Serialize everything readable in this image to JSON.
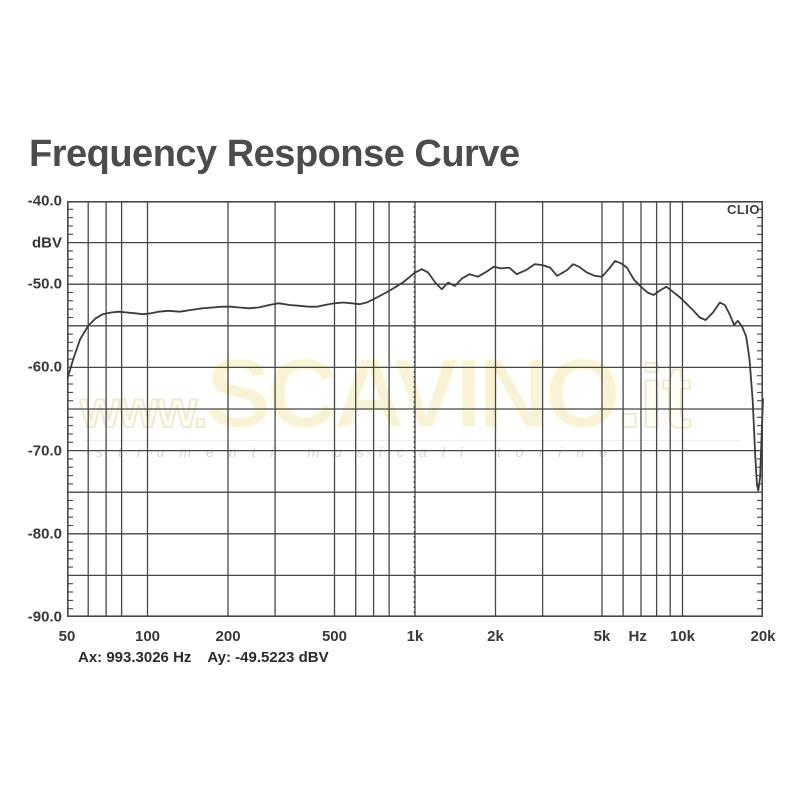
{
  "title": "Frequency Response Curve",
  "clio_label": "CLIO",
  "cursor": {
    "ax": "Ax: 993.3026 Hz",
    "ay": "Ay: -49.5223 dBV"
  },
  "watermark": {
    "prefix": "www.",
    "main": "SCAVINO",
    "suffix": ".it",
    "subtext": "strumenti musicali torino"
  },
  "axes": {
    "y_unit": "dBV",
    "y_ticks": [
      {
        "label": "-40.0",
        "value": -40
      },
      {
        "label": "dBV",
        "value": -45
      },
      {
        "label": "-50.0",
        "value": -50
      },
      {
        "label": "-60.0",
        "value": -60
      },
      {
        "label": "-70.0",
        "value": -70
      },
      {
        "label": "-80.0",
        "value": -80
      },
      {
        "label": "-90.0",
        "value": -90
      }
    ],
    "x_ticks": [
      {
        "label": "50",
        "hz": 50
      },
      {
        "label": "100",
        "hz": 100
      },
      {
        "label": "200",
        "hz": 200
      },
      {
        "label": "500",
        "hz": 500
      },
      {
        "label": "1k",
        "hz": 1000
      },
      {
        "label": "2k",
        "hz": 2000
      },
      {
        "label": "5k",
        "hz": 5000
      },
      {
        "label": "Hz",
        "hz": 6800
      },
      {
        "label": "10k",
        "hz": 10000
      },
      {
        "label": "20k",
        "hz": 20000
      }
    ]
  },
  "colors": {
    "grid": "#474747",
    "curve": "#3c3c3c",
    "title_text": "#4c4c4c",
    "watermark_fill": "#f8f3d6"
  },
  "chart_data": {
    "type": "line",
    "title": "Frequency Response Curve",
    "xlabel": "Hz",
    "ylabel": "dBV",
    "xscale": "log",
    "xlim": [
      50,
      20000
    ],
    "ylim": [
      -90,
      -40
    ],
    "grid": true,
    "y_grid_step_db": 5,
    "y_minor_tick_step_db": 1,
    "x_gridlines_hz": [
      60,
      70,
      80,
      100,
      200,
      300,
      500,
      600,
      700,
      800,
      1000,
      2000,
      3000,
      5000,
      6000,
      7000,
      8000,
      9000,
      10000
    ],
    "cursor_marker": {
      "x_hz": 993.3026,
      "y_dbv": -49.5223,
      "style": "dotted-vertical-line"
    },
    "series": [
      {
        "name": "frequency-response",
        "points": [
          [
            50,
            -61.5
          ],
          [
            53,
            -58.8
          ],
          [
            56,
            -56.6
          ],
          [
            60,
            -55.0
          ],
          [
            64,
            -54.1
          ],
          [
            68,
            -53.6
          ],
          [
            73,
            -53.4
          ],
          [
            78,
            -53.3
          ],
          [
            84,
            -53.4
          ],
          [
            90,
            -53.5
          ],
          [
            96,
            -53.6
          ],
          [
            103,
            -53.5
          ],
          [
            110,
            -53.3
          ],
          [
            120,
            -53.2
          ],
          [
            132,
            -53.3
          ],
          [
            145,
            -53.1
          ],
          [
            160,
            -52.9
          ],
          [
            175,
            -52.8
          ],
          [
            190,
            -52.7
          ],
          [
            205,
            -52.7
          ],
          [
            220,
            -52.8
          ],
          [
            240,
            -52.9
          ],
          [
            260,
            -52.8
          ],
          [
            285,
            -52.5
          ],
          [
            310,
            -52.3
          ],
          [
            340,
            -52.5
          ],
          [
            370,
            -52.6
          ],
          [
            400,
            -52.7
          ],
          [
            430,
            -52.7
          ],
          [
            460,
            -52.5
          ],
          [
            500,
            -52.3
          ],
          [
            540,
            -52.2
          ],
          [
            580,
            -52.3
          ],
          [
            620,
            -52.4
          ],
          [
            660,
            -52.2
          ],
          [
            700,
            -51.8
          ],
          [
            750,
            -51.3
          ],
          [
            800,
            -50.8
          ],
          [
            850,
            -50.3
          ],
          [
            900,
            -49.8
          ],
          [
            950,
            -49.2
          ],
          [
            1000,
            -48.6
          ],
          [
            1060,
            -48.2
          ],
          [
            1120,
            -48.6
          ],
          [
            1190,
            -49.8
          ],
          [
            1260,
            -50.6
          ],
          [
            1330,
            -49.8
          ],
          [
            1410,
            -50.2
          ],
          [
            1500,
            -49.3
          ],
          [
            1600,
            -48.8
          ],
          [
            1720,
            -49.1
          ],
          [
            1850,
            -48.5
          ],
          [
            1970,
            -47.9
          ],
          [
            2100,
            -48.1
          ],
          [
            2250,
            -48.0
          ],
          [
            2400,
            -48.8
          ],
          [
            2600,
            -48.3
          ],
          [
            2800,
            -47.6
          ],
          [
            3000,
            -47.7
          ],
          [
            3200,
            -48.0
          ],
          [
            3400,
            -49.0
          ],
          [
            3700,
            -48.3
          ],
          [
            3900,
            -47.6
          ],
          [
            4100,
            -47.9
          ],
          [
            4400,
            -48.6
          ],
          [
            4700,
            -49.0
          ],
          [
            5000,
            -49.1
          ],
          [
            5300,
            -48.2
          ],
          [
            5600,
            -47.2
          ],
          [
            5900,
            -47.5
          ],
          [
            6200,
            -48.0
          ],
          [
            6600,
            -49.5
          ],
          [
            7000,
            -50.3
          ],
          [
            7400,
            -51.0
          ],
          [
            7800,
            -51.3
          ],
          [
            8200,
            -50.8
          ],
          [
            8700,
            -50.3
          ],
          [
            9200,
            -50.9
          ],
          [
            9800,
            -51.6
          ],
          [
            10400,
            -52.4
          ],
          [
            11000,
            -53.2
          ],
          [
            11600,
            -54.0
          ],
          [
            12200,
            -54.3
          ],
          [
            13000,
            -53.4
          ],
          [
            13800,
            -52.2
          ],
          [
            14400,
            -52.5
          ],
          [
            15000,
            -53.6
          ],
          [
            15600,
            -54.9
          ],
          [
            16100,
            -54.4
          ],
          [
            16700,
            -55.1
          ],
          [
            17300,
            -56.3
          ],
          [
            17800,
            -59.0
          ],
          [
            18300,
            -64.0
          ],
          [
            18700,
            -70.5
          ],
          [
            19000,
            -74.2
          ],
          [
            19200,
            -74.8
          ],
          [
            19500,
            -73.2
          ],
          [
            19700,
            -69.5
          ],
          [
            20000,
            -63.8
          ]
        ]
      }
    ]
  }
}
